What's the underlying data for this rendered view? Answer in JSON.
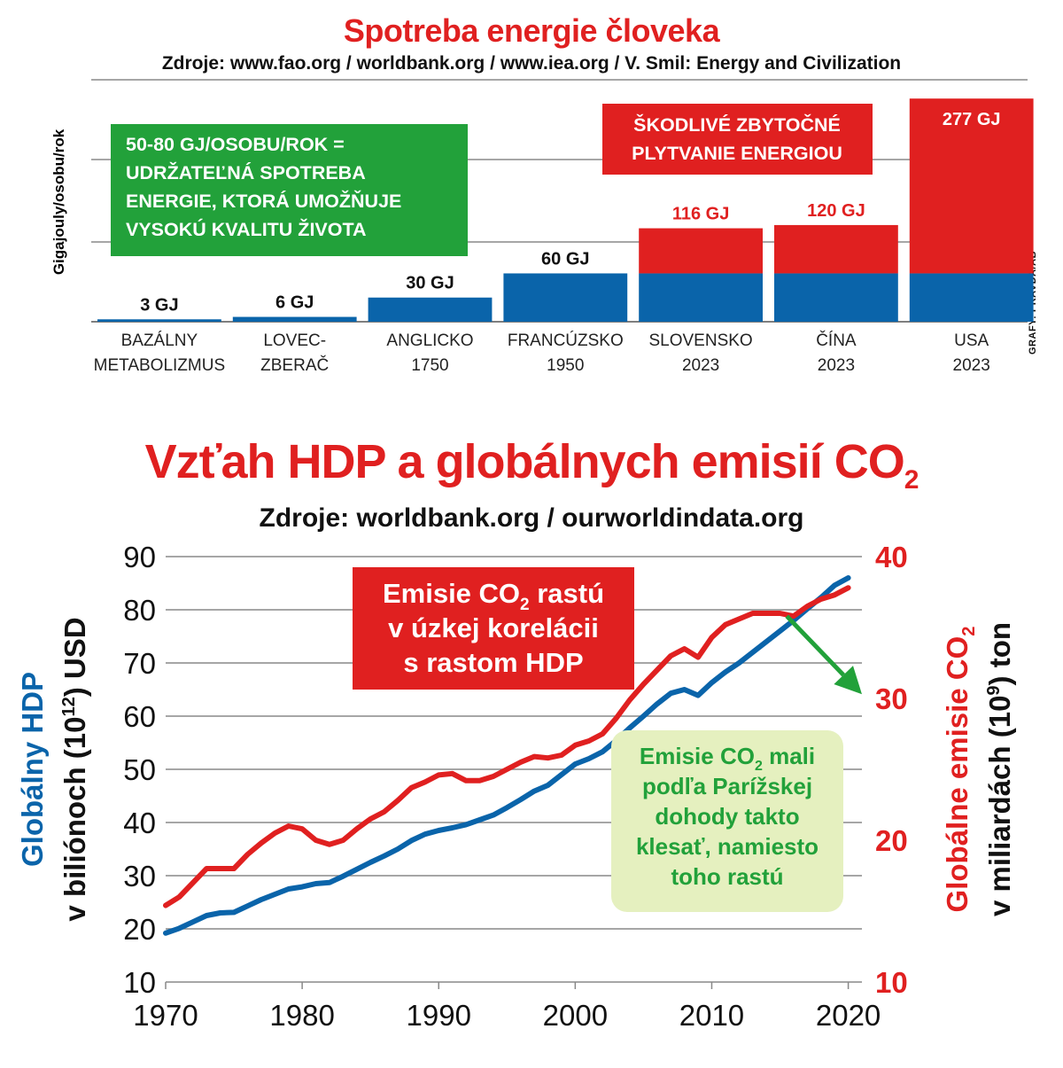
{
  "top_title": "Spotreba energie človeka",
  "top_source": "Zdroje: www.fao.org / worldbank.org / www.iea.org / V. Smil: Energy and Civilization",
  "credit": "GRAFY: PRAVDA/AB",
  "bottom_title": "Vzťah HDP a globálnych emisií CO",
  "bottom_title_sub": "2",
  "bottom_source": "Zdroje: worldbank.org / ourworldindata.org",
  "colors": {
    "red": "#e02020",
    "blue": "#0a64aa",
    "green": "#22a13a",
    "light_green": "#e5f0bf",
    "grid": "#888888"
  },
  "chart_data": [
    {
      "type": "bar",
      "title": "Spotreba energie človeka",
      "ylabel": "Gigajouly/osobu/rok",
      "categories": [
        "BAZÁLNY METABOLIZMUS",
        "LOVEC-ZBERAČ",
        "ANGLICKO 1750",
        "FRANCÚZSKO 1950",
        "SLOVENSKO 2023",
        "ČÍNA 2023",
        "USA 2023"
      ],
      "category_lines": [
        [
          "BAZÁLNY",
          "METABOLIZMUS"
        ],
        [
          "LOVEC-",
          "ZBERAČ"
        ],
        [
          "ANGLICKO",
          "1750"
        ],
        [
          "FRANCÚZSKO",
          "1950"
        ],
        [
          "SLOVENSKO",
          "2023"
        ],
        [
          "ČÍNA",
          "2023"
        ],
        [
          "USA",
          "2023"
        ]
      ],
      "values": [
        3,
        6,
        30,
        60,
        116,
        120,
        277
      ],
      "value_labels": [
        "3 GJ",
        "6 GJ",
        "30 GJ",
        "60 GJ",
        "116 GJ",
        "120 GJ",
        "277 GJ"
      ],
      "sustainable_cap": 60,
      "ylim": [
        0,
        290
      ],
      "grid": true,
      "annotations": {
        "green_box": [
          "50-80 GJ/OSOBU/ROK =",
          "UDRŽATEĽNÁ SPOTREBA",
          "ENERGIE, KTORÁ UMOŽŇUJE",
          "VYSOKÚ KVALITU ŽIVOTA"
        ],
        "red_box": [
          "ŠKODLIVÉ ZBYTOČNÉ",
          "PLYTVANIE ENERGIOU"
        ]
      }
    },
    {
      "type": "line",
      "title": "Vzťah HDP a globálnych emisií CO2",
      "x": [
        1970,
        1971,
        1972,
        1973,
        1974,
        1975,
        1976,
        1977,
        1978,
        1979,
        1980,
        1981,
        1982,
        1983,
        1984,
        1985,
        1986,
        1987,
        1988,
        1989,
        1990,
        1991,
        1992,
        1993,
        1994,
        1995,
        1996,
        1997,
        1998,
        1999,
        2000,
        2001,
        2002,
        2003,
        2004,
        2005,
        2006,
        2007,
        2008,
        2009,
        2010,
        2011,
        2012,
        2013,
        2014,
        2015,
        2016,
        2017,
        2018,
        2019,
        2020
      ],
      "x_ticks": [
        1970,
        1980,
        1990,
        2000,
        2010,
        2020
      ],
      "xlim": [
        1970,
        2021
      ],
      "series": [
        {
          "name": "Globálny HDP",
          "axis": "left",
          "color": "#0a64aa",
          "values": [
            19.2,
            20.1,
            21.3,
            22.5,
            23.0,
            23.1,
            24.3,
            25.5,
            26.5,
            27.5,
            27.9,
            28.5,
            28.7,
            29.9,
            31.2,
            32.5,
            33.7,
            35.0,
            36.6,
            37.8,
            38.5,
            39.0,
            39.6,
            40.5,
            41.4,
            42.8,
            44.3,
            45.9,
            47.0,
            49.0,
            51.0,
            52.0,
            53.3,
            55.4,
            57.8,
            60.0,
            62.3,
            64.3,
            65.0,
            63.9,
            66.3,
            68.3,
            70.0,
            72.0,
            74.0,
            76.0,
            78.0,
            80.2,
            82.3,
            84.6,
            86.0
          ]
        },
        {
          "name": "Globálne emisie CO2",
          "axis": "right",
          "color": "#e02020",
          "values": [
            15.4,
            16.0,
            17.0,
            18.0,
            18.0,
            18.0,
            19.0,
            19.8,
            20.5,
            21.0,
            20.8,
            20.0,
            19.7,
            20.0,
            20.8,
            21.5,
            22.0,
            22.8,
            23.7,
            24.1,
            24.6,
            24.7,
            24.2,
            24.2,
            24.5,
            25.0,
            25.5,
            25.9,
            25.8,
            26.0,
            26.7,
            27.0,
            27.5,
            28.6,
            29.9,
            31.0,
            32.0,
            33.0,
            33.5,
            32.9,
            34.3,
            35.2,
            35.6,
            36.0,
            36.0,
            36.0,
            35.8,
            36.5,
            37.0,
            37.3,
            37.8
          ]
        }
      ],
      "y_left": {
        "label": "Globálny HDP",
        "label2": "v biliónoch (10",
        "label2_sup": "12",
        "label2_end": ") USD",
        "ylim": [
          10,
          90
        ],
        "ticks": [
          10,
          20,
          30,
          40,
          50,
          60,
          70,
          80,
          90
        ]
      },
      "y_right": {
        "label": "Globálne emisie CO",
        "label_sub": "2",
        "label2": "v miliardách (10",
        "label2_sup": "9",
        "label2_end": ") ton",
        "ylim": [
          10,
          40
        ],
        "ticks": [
          10,
          20,
          30,
          40
        ]
      },
      "grid": true,
      "annotations": {
        "red_box": [
          "Emisie CO",
          "2",
          " rastú",
          "v úzkej korelácii",
          "s rastom HDP"
        ],
        "green_box": [
          "Emisie CO",
          "2",
          " mali",
          "podľa Parížskej",
          "dohody takto",
          "klesať, namiesto",
          "toho rastú"
        ],
        "arrow": {
          "from_x": 2015.5,
          "from_y_right": 35.8,
          "to_x": 2021,
          "to_y_right": 30.3
        }
      }
    }
  ]
}
